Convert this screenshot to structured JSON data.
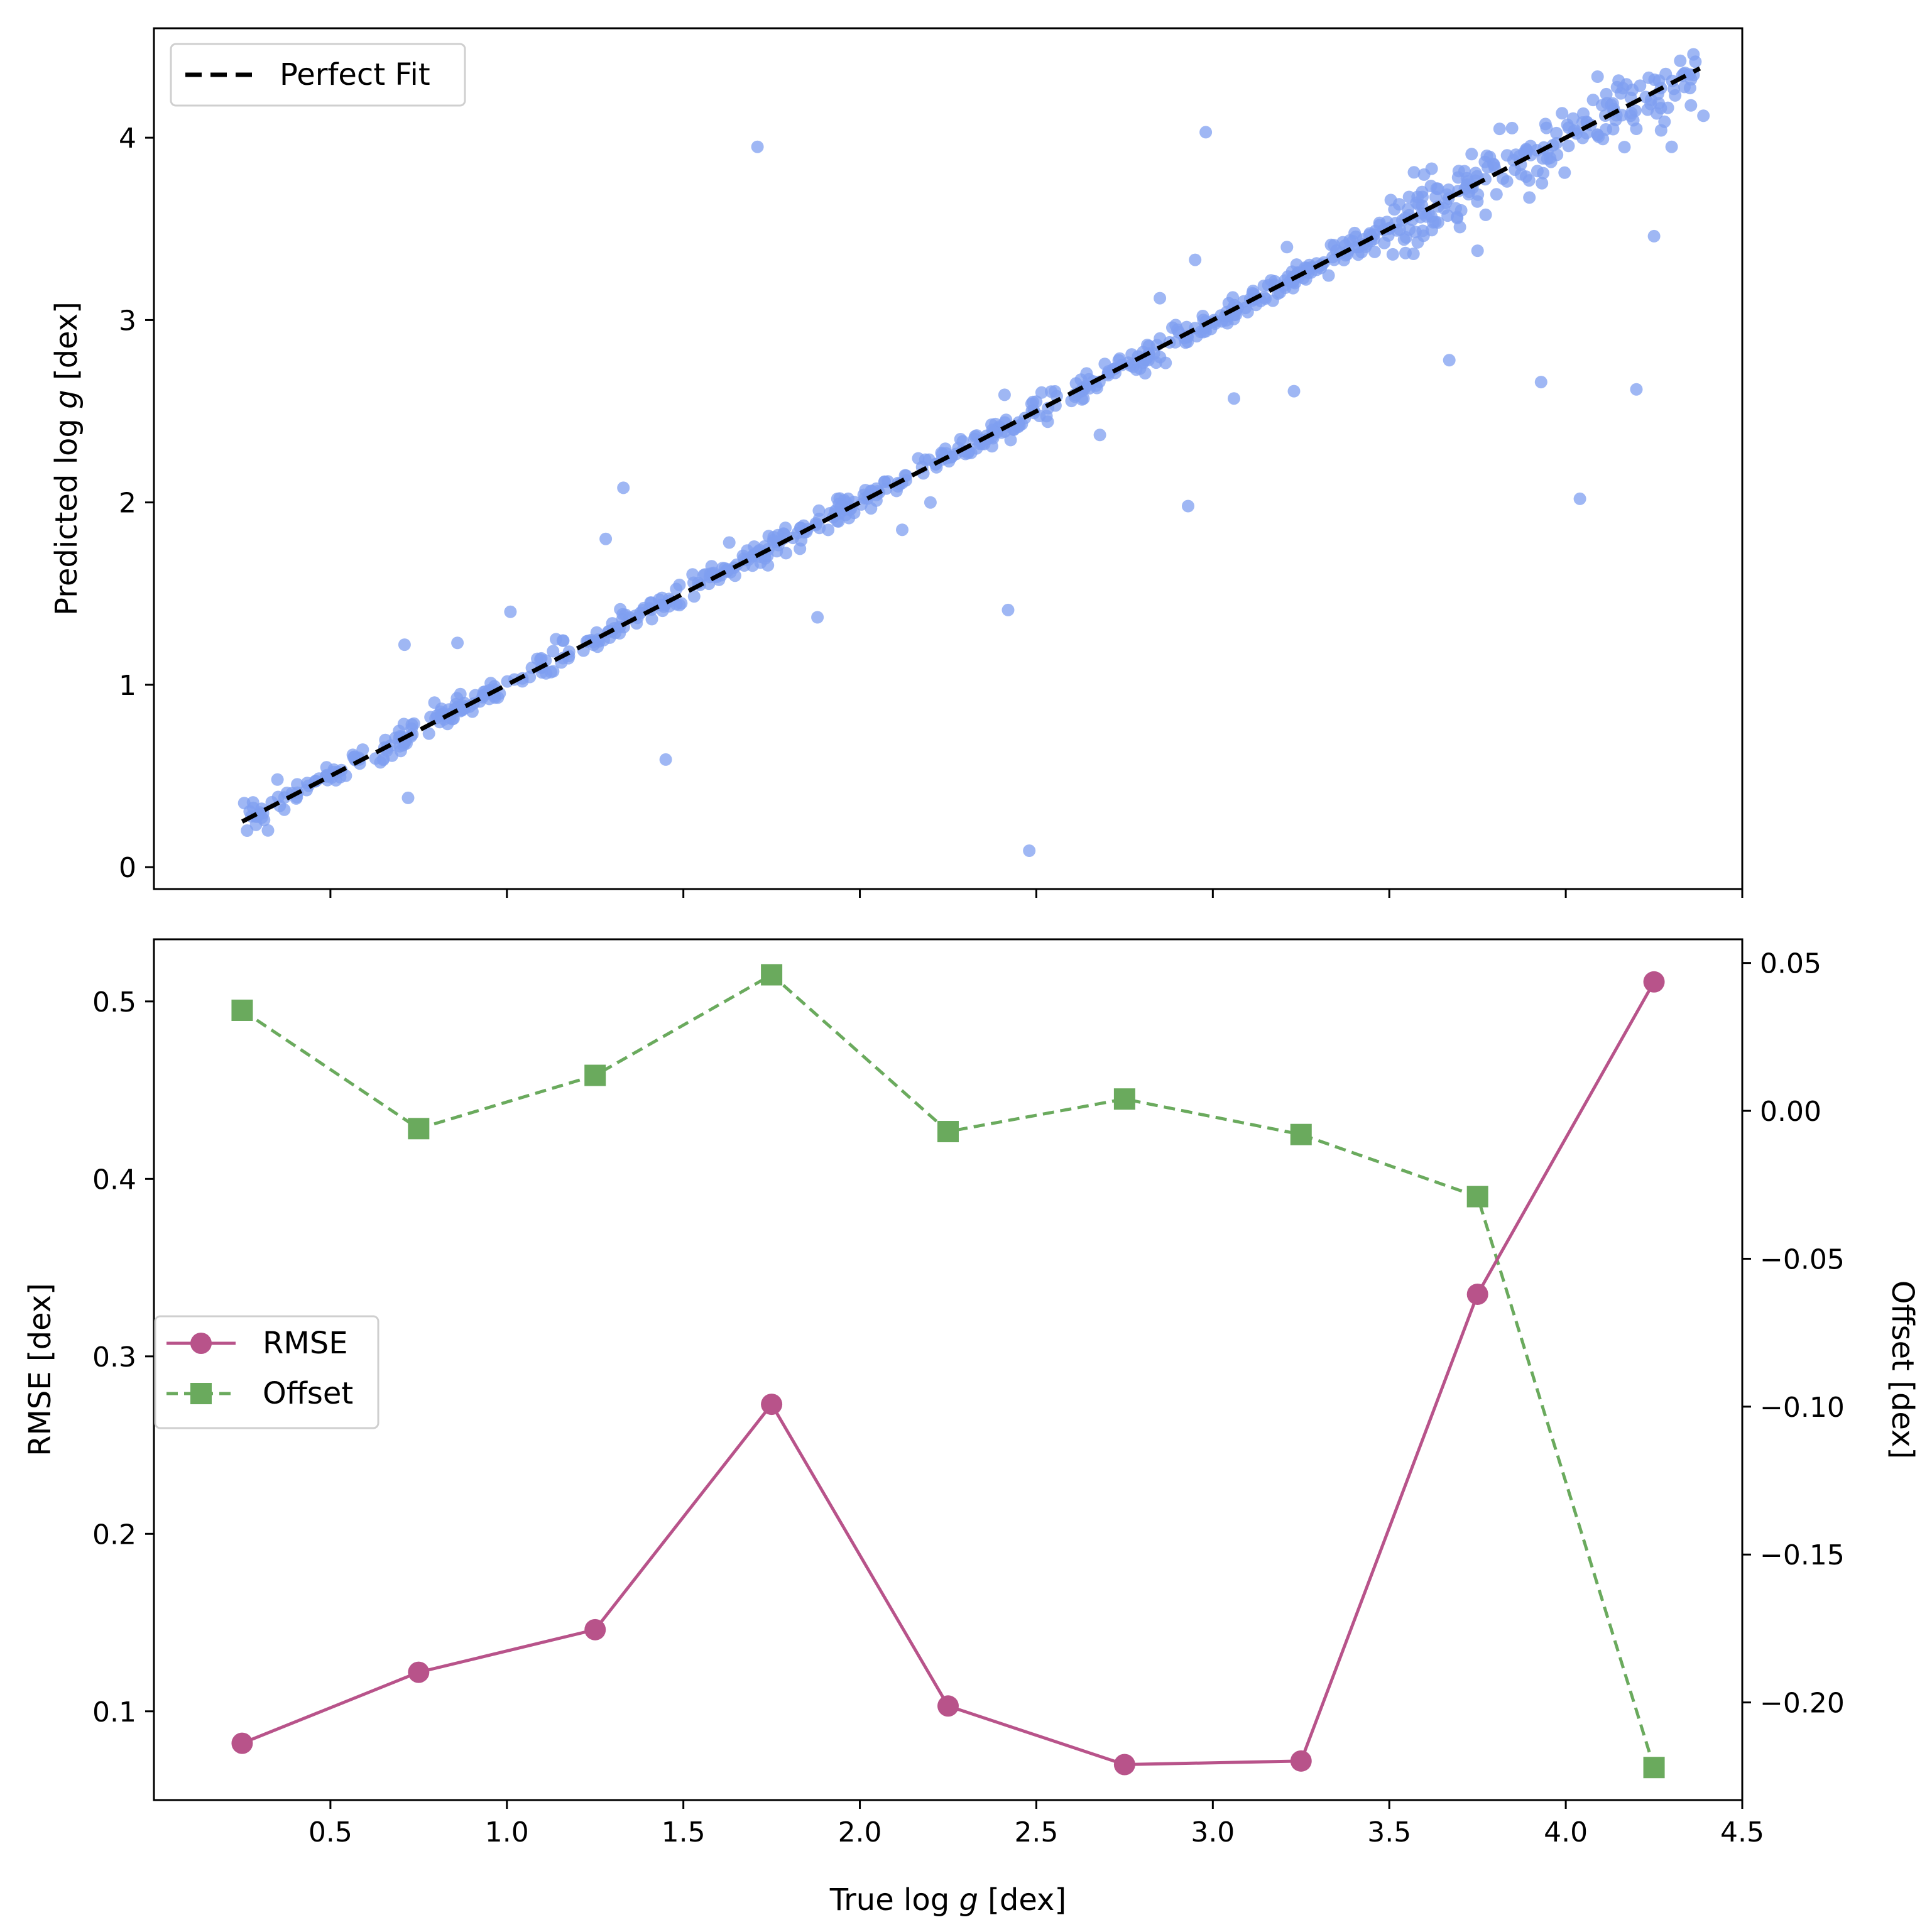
{
  "chart_data": [
    {
      "type": "scatter",
      "title": "",
      "xlabel": "",
      "ylabel_prefix": "Predicted log ",
      "ylabel_var": "g",
      "ylabel_suffix": " [dex]",
      "xlim": [
        0,
        4.5
      ],
      "ylim": [
        -0.12,
        4.6
      ],
      "x_ticks": [
        0.5,
        1.0,
        1.5,
        2.0,
        2.5,
        3.0,
        3.5,
        4.0,
        4.5
      ],
      "y_ticks": [
        0,
        1,
        2,
        3,
        4
      ],
      "y_tick_labels": [
        "0",
        "1",
        "2",
        "3",
        "4"
      ],
      "point_color": "#7f9ff0",
      "legend": [
        {
          "label": "Perfect Fit",
          "style": "dashed",
          "color": "#000000"
        }
      ],
      "legend_position": "top-left",
      "perfect_fit": {
        "x": [
          0.25,
          4.38
        ],
        "y": [
          0.25,
          4.38
        ]
      },
      "outliers": [
        [
          1.71,
          3.95
        ],
        [
          2.98,
          4.03
        ],
        [
          2.48,
          0.09
        ],
        [
          1.45,
          0.59
        ],
        [
          0.72,
          0.38
        ],
        [
          2.42,
          1.41
        ],
        [
          1.88,
          1.37
        ],
        [
          1.33,
          2.08
        ],
        [
          1.28,
          1.8
        ],
        [
          2.93,
          1.98
        ],
        [
          3.67,
          2.78
        ],
        [
          3.93,
          2.66
        ],
        [
          4.2,
          2.62
        ],
        [
          4.04,
          2.02
        ],
        [
          4.25,
          3.46
        ],
        [
          3.06,
          2.57
        ],
        [
          3.23,
          2.61
        ],
        [
          2.68,
          2.37
        ],
        [
          0.71,
          1.22
        ],
        [
          0.86,
          1.23
        ],
        [
          1.01,
          1.4
        ],
        [
          1.58,
          1.65
        ],
        [
          1.63,
          1.78
        ],
        [
          3.75,
          3.38
        ],
        [
          3.62,
          3.83
        ],
        [
          3.57,
          3.81
        ],
        [
          3.7,
          3.51
        ],
        [
          3.51,
          3.36
        ],
        [
          0.35,
          0.48
        ],
        [
          0.3,
          0.3
        ],
        [
          2.12,
          1.85
        ],
        [
          2.2,
          2.0
        ],
        [
          2.95,
          3.33
        ],
        [
          3.21,
          3.4
        ],
        [
          2.41,
          2.59
        ],
        [
          2.85,
          3.12
        ],
        [
          4.3,
          3.95
        ],
        [
          4.27,
          4.04
        ],
        [
          4.39,
          4.12
        ]
      ]
    },
    {
      "type": "line",
      "title": "",
      "xlabel_prefix": "True log ",
      "xlabel_var": "g",
      "xlabel_suffix": " [dex]",
      "x": [
        0.25,
        0.75,
        1.25,
        1.75,
        2.25,
        2.75,
        3.25,
        3.75,
        4.25
      ],
      "xlim": [
        0,
        4.5
      ],
      "x_ticks": [
        0.5,
        1.0,
        1.5,
        2.0,
        2.5,
        3.0,
        3.5,
        4.0,
        4.5
      ],
      "x_tick_labels": [
        "0.5",
        "1.0",
        "1.5",
        "2.0",
        "2.5",
        "3.0",
        "3.5",
        "4.0",
        "4.5"
      ],
      "left_axis": {
        "ylabel": "RMSE [dex]",
        "ylim": [
          0.05,
          0.535
        ],
        "ticks": [
          0.1,
          0.2,
          0.3,
          0.4,
          0.5
        ],
        "tick_labels": [
          "0.1",
          "0.2",
          "0.3",
          "0.4",
          "0.5"
        ],
        "color": "#b8538a"
      },
      "right_axis": {
        "ylabel": "Offset [dex]",
        "ylim": [
          -0.233,
          0.058
        ],
        "ticks": [
          0.05,
          0.0,
          -0.05,
          -0.1,
          -0.15,
          -0.2
        ],
        "tick_labels": [
          "0.05",
          "0.00",
          "−0.05",
          "−0.10",
          "−0.15",
          "−0.20"
        ],
        "color": "#6aaa5d"
      },
      "series": [
        {
          "name": "RMSE",
          "axis": "left",
          "marker": "circle",
          "style": "solid",
          "color": "#b8538a",
          "values": [
            0.082,
            0.122,
            0.146,
            0.273,
            0.103,
            0.07,
            0.072,
            0.335,
            0.511
          ]
        },
        {
          "name": "Offset",
          "axis": "right",
          "marker": "square",
          "style": "dashed",
          "color": "#6aaa5d",
          "values": [
            0.034,
            -0.006,
            0.012,
            0.046,
            -0.007,
            0.004,
            -0.008,
            -0.029,
            -0.222
          ]
        }
      ],
      "legend": [
        {
          "label": "RMSE",
          "style": "solid",
          "marker": "circle",
          "color": "#b8538a"
        },
        {
          "label": "Offset",
          "style": "dashed",
          "marker": "square",
          "color": "#6aaa5d"
        }
      ],
      "legend_position": "center-left"
    }
  ]
}
